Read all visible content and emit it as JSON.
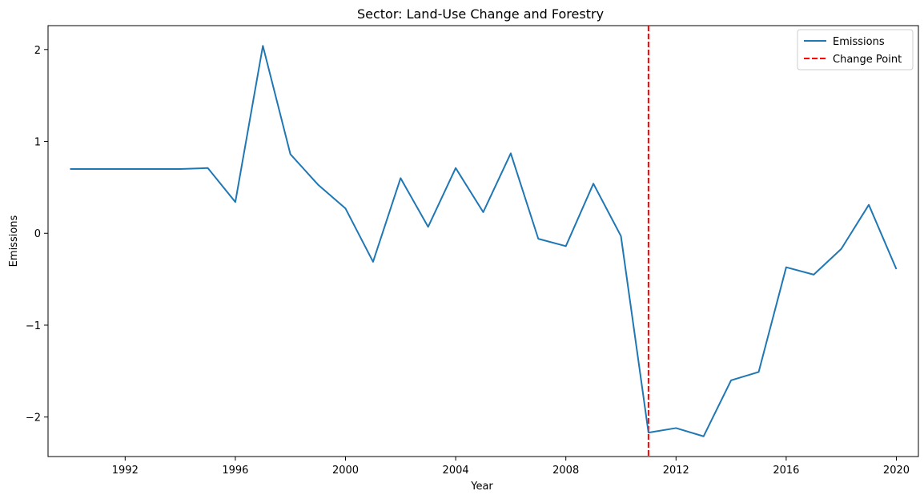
{
  "chart_data": {
    "type": "line",
    "title": "Sector: Land-Use Change and Forestry",
    "xlabel": "Year",
    "ylabel": "Emissions",
    "xlim": [
      1989.2,
      2020.8
    ],
    "ylim": [
      -2.43,
      2.26
    ],
    "xticks": [
      1992,
      1996,
      2000,
      2004,
      2008,
      2012,
      2016,
      2020
    ],
    "xtick_labels": [
      "1992",
      "1996",
      "2000",
      "2004",
      "2008",
      "2012",
      "2016",
      "2020"
    ],
    "yticks": [
      -2,
      -1,
      0,
      1,
      2
    ],
    "ytick_labels": [
      "−2",
      "−1",
      "0",
      "1",
      "2"
    ],
    "grid": false,
    "legend_position": "top-right",
    "series": [
      {
        "name": "Emissions",
        "color": "#1f77b4",
        "style": "solid",
        "x": [
          1990,
          1991,
          1992,
          1993,
          1994,
          1995,
          1996,
          1997,
          1998,
          1999,
          2000,
          2001,
          2002,
          2003,
          2004,
          2005,
          2006,
          2007,
          2008,
          2009,
          2010,
          2011,
          2012,
          2013,
          2014,
          2015,
          2016,
          2017,
          2018,
          2019,
          2020
        ],
        "y": [
          0.7,
          0.7,
          0.7,
          0.7,
          0.7,
          0.71,
          0.34,
          2.04,
          0.86,
          0.53,
          0.27,
          -0.31,
          0.6,
          0.07,
          0.71,
          0.23,
          0.87,
          -0.06,
          -0.14,
          0.54,
          -0.03,
          -2.17,
          -2.12,
          -2.21,
          -1.6,
          -1.51,
          -0.37,
          -0.45,
          -0.17,
          0.31,
          -0.39
        ]
      }
    ],
    "vlines": [
      {
        "name": "Change Point",
        "x": 2011,
        "color": "#ff0000",
        "style": "dashed"
      }
    ]
  }
}
